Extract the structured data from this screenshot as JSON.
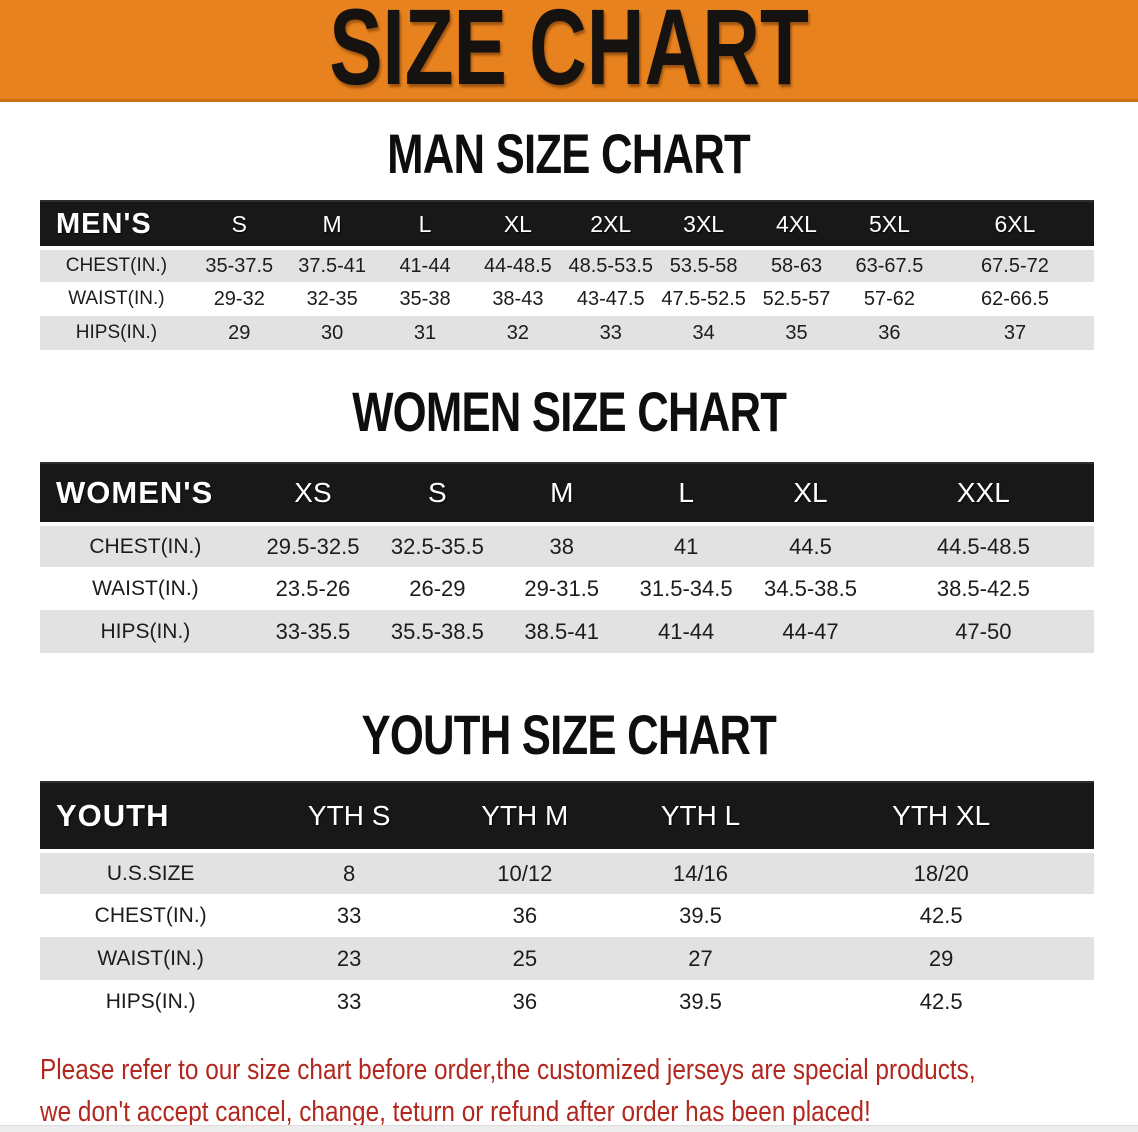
{
  "banner": {
    "title": "SIZE CHART"
  },
  "sections": [
    {
      "heading": "MAN SIZE CHART",
      "table": {
        "header_label": "MEN'S",
        "columns": [
          "S",
          "M",
          "L",
          "XL",
          "2XL",
          "3XL",
          "4XL",
          "5XL",
          "6XL"
        ],
        "rows": [
          {
            "label": "CHEST(IN.)",
            "values": [
              "35-37.5",
              "37.5-41",
              "41-44",
              "44-48.5",
              "48.5-53.5",
              "53.5-58",
              "58-63",
              "63-67.5",
              "67.5-72"
            ]
          },
          {
            "label": "WAIST(IN.)",
            "values": [
              "29-32",
              "32-35",
              "35-38",
              "38-43",
              "43-47.5",
              "47.5-52.5",
              "52.5-57",
              "57-62",
              "62-66.5"
            ]
          },
          {
            "label": "HIPS(IN.)",
            "values": [
              "29",
              "30",
              "31",
              "32",
              "33",
              "34",
              "35",
              "36",
              "37"
            ]
          }
        ]
      }
    },
    {
      "heading": "WOMEN SIZE CHART",
      "table": {
        "header_label": "WOMEN'S",
        "columns": [
          "XS",
          "S",
          "M",
          "L",
          "XL",
          "XXL"
        ],
        "rows": [
          {
            "label": "CHEST(IN.)",
            "values": [
              "29.5-32.5",
              "32.5-35.5",
              "38",
              "41",
              "44.5",
              "44.5-48.5"
            ]
          },
          {
            "label": "WAIST(IN.)",
            "values": [
              "23.5-26",
              "26-29",
              "29-31.5",
              "31.5-34.5",
              "34.5-38.5",
              "38.5-42.5"
            ]
          },
          {
            "label": "HIPS(IN.)",
            "values": [
              "33-35.5",
              "35.5-38.5",
              "38.5-41",
              "41-44",
              "44-47",
              "47-50"
            ]
          }
        ]
      }
    },
    {
      "heading": "YOUTH SIZE CHART",
      "table": {
        "header_label": "YOUTH",
        "columns": [
          "YTH S",
          "YTH M",
          "YTH L",
          "YTH XL"
        ],
        "rows": [
          {
            "label": "U.S.SIZE",
            "values": [
              "8",
              "10/12",
              "14/16",
              "18/20"
            ]
          },
          {
            "label": "CHEST(IN.)",
            "values": [
              "33",
              "36",
              "39.5",
              "42.5"
            ]
          },
          {
            "label": "WAIST(IN.)",
            "values": [
              "23",
              "25",
              "27",
              "29"
            ]
          },
          {
            "label": "HIPS(IN.)",
            "values": [
              "33",
              "36",
              "39.5",
              "42.5"
            ]
          }
        ]
      }
    }
  ],
  "disclaimer": {
    "line1": "Please refer to our size chart before order,the customized jerseys are special products,",
    "line2": "we don't accept cancel, change, teturn or refund after order has been placed!"
  },
  "colors": {
    "banner-bg": "#e8821e",
    "banner-text": "#161210",
    "table-header-bg": "#181818",
    "stripe": "#e2e2e2",
    "disclaimer-red": "#b2281f"
  }
}
